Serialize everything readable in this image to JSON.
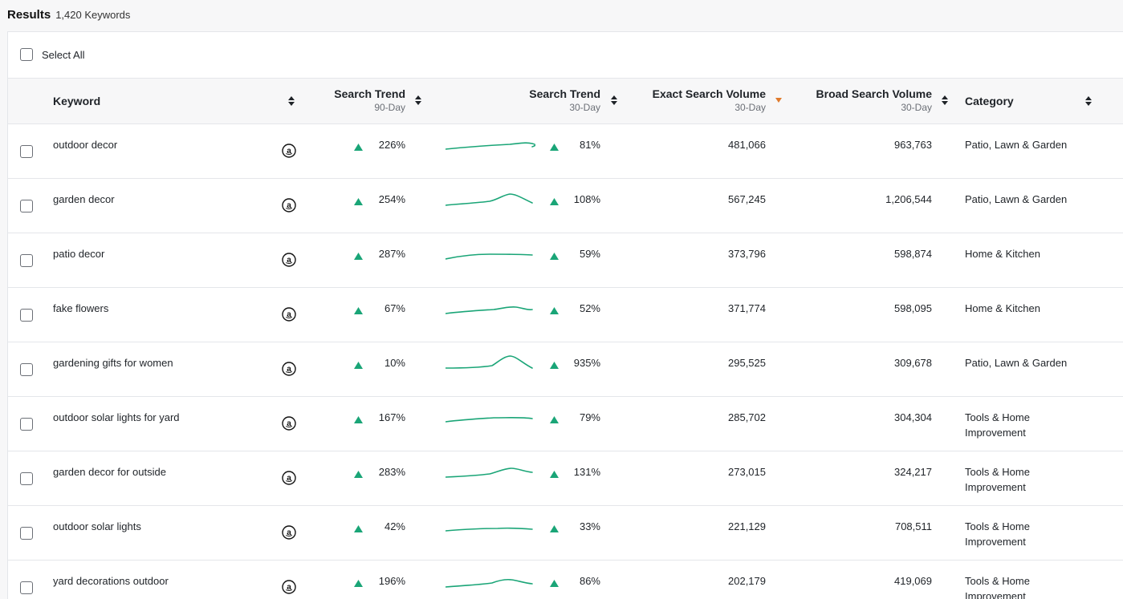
{
  "results": {
    "title": "Results",
    "count": "1,420 Keywords"
  },
  "select_all": "Select All",
  "columns": {
    "keyword": "Keyword",
    "trend90": {
      "label": "Search Trend",
      "sub": "90-Day"
    },
    "trend30": {
      "label": "Search Trend",
      "sub": "30-Day"
    },
    "exact": {
      "label": "Exact Search Volume",
      "sub": "30-Day"
    },
    "broad": {
      "label": "Broad Search Volume",
      "sub": "30-Day"
    },
    "category": "Category"
  },
  "colors": {
    "trend_green": "#1aa577",
    "sort_active": "#e07a2b"
  },
  "icons": {
    "source": "amazon-icon",
    "trend": "triangle-up-icon",
    "sort": "sort-arrows-icon"
  },
  "rows": [
    {
      "keyword": "outdoor decor",
      "trend90": "226%",
      "trend30": "81%",
      "exact": "481,066",
      "broad": "963,763",
      "category": "Patio, Lawn & Garden"
    },
    {
      "keyword": "garden decor",
      "trend90": "254%",
      "trend30": "108%",
      "exact": "567,245",
      "broad": "1,206,544",
      "category": "Patio, Lawn & Garden"
    },
    {
      "keyword": "patio decor",
      "trend90": "287%",
      "trend30": "59%",
      "exact": "373,796",
      "broad": "598,874",
      "category": "Home & Kitchen"
    },
    {
      "keyword": "fake flowers",
      "trend90": "67%",
      "trend30": "52%",
      "exact": "371,774",
      "broad": "598,095",
      "category": "Home & Kitchen"
    },
    {
      "keyword": "gardening gifts for women",
      "trend90": "10%",
      "trend30": "935%",
      "exact": "295,525",
      "broad": "309,678",
      "category": "Patio, Lawn & Garden"
    },
    {
      "keyword": "outdoor solar lights for yard",
      "trend90": "167%",
      "trend30": "79%",
      "exact": "285,702",
      "broad": "304,304",
      "category": "Tools & Home Improvement"
    },
    {
      "keyword": "garden decor for outside",
      "trend90": "283%",
      "trend30": "131%",
      "exact": "273,015",
      "broad": "324,217",
      "category": "Tools & Home Improvement"
    },
    {
      "keyword": "outdoor solar lights",
      "trend90": "42%",
      "trend30": "33%",
      "exact": "221,129",
      "broad": "708,511",
      "category": "Tools & Home Improvement"
    },
    {
      "keyword": "yard decorations outdoor",
      "trend90": "196%",
      "trend30": "86%",
      "exact": "202,179",
      "broad": "419,069",
      "category": "Tools & Home Improvement"
    }
  ]
}
